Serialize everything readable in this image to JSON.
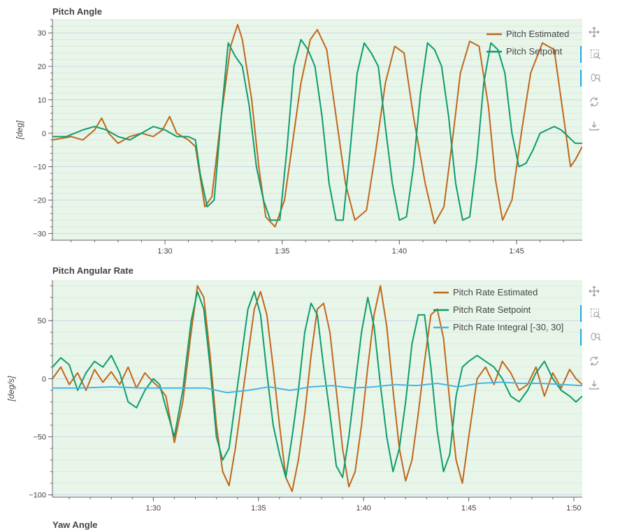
{
  "colors": {
    "estimated": "#c0671a",
    "setpoint": "#0e9c6d",
    "integral": "#4ab3e0",
    "plot_bg": "#e8f6ea",
    "grid": "#cdd7e6",
    "minor_grid": "#dde8dd",
    "toolbar_accent": "#26aae1"
  },
  "toolbar": {
    "icons": [
      "pan-icon",
      "box-zoom-icon",
      "wheel-zoom-icon",
      "reset-icon",
      "save-icon"
    ]
  },
  "next_title": "Yaw Angle",
  "chart_data": [
    {
      "type": "line",
      "title": "Pitch Angle",
      "ylabel": "[deg]",
      "xlim": [
        85.2,
        107.8
      ],
      "ylim": [
        -32,
        34
      ],
      "x_ticks": [
        {
          "v": 90,
          "label": "1:30"
        },
        {
          "v": 95,
          "label": "1:35"
        },
        {
          "v": 100,
          "label": "1:40"
        },
        {
          "v": 105,
          "label": "1:45"
        }
      ],
      "y_ticks": [
        30,
        20,
        10,
        0,
        -10,
        -20,
        -30
      ],
      "grid": true,
      "legend_position": "top-right",
      "series": [
        {
          "name": "Pitch Estimated",
          "color_key": "estimated",
          "x": [
            85.2,
            86.0,
            86.5,
            87.0,
            87.3,
            87.6,
            88.0,
            88.5,
            89.0,
            89.5,
            89.9,
            90.2,
            90.5,
            91.0,
            91.3,
            91.7,
            92.0,
            92.4,
            92.8,
            93.1,
            93.3,
            93.7,
            94.0,
            94.3,
            94.7,
            95.1,
            95.4,
            95.8,
            96.2,
            96.5,
            96.9,
            97.3,
            97.7,
            98.1,
            98.6,
            99.0,
            99.4,
            99.8,
            100.2,
            100.6,
            101.1,
            101.5,
            101.9,
            102.3,
            102.6,
            103.0,
            103.4,
            103.8,
            104.1,
            104.4,
            104.8,
            105.2,
            105.6,
            106.1,
            106.6,
            107.0,
            107.3,
            107.5,
            107.8
          ],
          "y": [
            -2,
            -1,
            -2,
            1,
            4.5,
            0,
            -3,
            -1,
            0,
            -1,
            1,
            5,
            0,
            -2,
            -4,
            -22,
            -19,
            5,
            26,
            32.5,
            28,
            10,
            -10,
            -25,
            -28,
            -20,
            -5,
            15,
            28,
            31,
            25,
            5,
            -15,
            -26,
            -23,
            -5,
            15,
            26,
            24,
            5,
            -15,
            -27,
            -22,
            0,
            18,
            27.5,
            26,
            8,
            -14,
            -26,
            -20,
            0,
            18,
            27,
            25,
            5,
            -10,
            -8,
            -4
          ]
        },
        {
          "name": "Pitch Setpoint",
          "color_key": "setpoint",
          "x": [
            85.2,
            85.8,
            86.5,
            87.0,
            87.5,
            88.0,
            88.5,
            89.0,
            89.5,
            90.0,
            90.5,
            91.0,
            91.3,
            91.5,
            91.8,
            92.1,
            92.4,
            92.7,
            93.0,
            93.3,
            93.6,
            93.9,
            94.2,
            94.5,
            94.9,
            95.2,
            95.5,
            95.8,
            96.1,
            96.4,
            96.7,
            97.0,
            97.3,
            97.6,
            97.9,
            98.2,
            98.5,
            98.8,
            99.1,
            99.4,
            99.7,
            100.0,
            100.3,
            100.6,
            100.9,
            101.2,
            101.5,
            101.8,
            102.1,
            102.4,
            102.7,
            103.0,
            103.3,
            103.6,
            103.9,
            104.2,
            104.5,
            104.8,
            105.1,
            105.4,
            105.7,
            106.0,
            106.3,
            106.6,
            106.9,
            107.2,
            107.5,
            107.8
          ],
          "y": [
            -1,
            -1,
            1,
            2,
            1,
            -1,
            -2,
            0,
            2,
            1,
            -1,
            -1,
            -2,
            -12,
            -22,
            -20,
            5,
            27,
            23,
            20,
            8,
            -10,
            -20,
            -26,
            -26,
            -5,
            20,
            28,
            25,
            20,
            5,
            -15,
            -26,
            -26,
            -5,
            18,
            27,
            24,
            20,
            2,
            -15,
            -26,
            -25,
            -10,
            12,
            27,
            25,
            20,
            5,
            -15,
            -26,
            -25,
            -8,
            15,
            27,
            25,
            18,
            0,
            -10,
            -9,
            -5,
            0,
            1,
            2,
            1,
            -1,
            -3,
            -3
          ]
        }
      ]
    },
    {
      "type": "line",
      "title": "Pitch Angular Rate",
      "ylabel": "[deg/s]",
      "xlim": [
        85.2,
        110.4
      ],
      "ylim": [
        -102,
        85
      ],
      "x_ticks": [
        {
          "v": 90,
          "label": "1:30"
        },
        {
          "v": 95,
          "label": "1:35"
        },
        {
          "v": 100,
          "label": "1:40"
        },
        {
          "v": 105,
          "label": "1:45"
        },
        {
          "v": 110,
          "label": "1:50"
        }
      ],
      "y_ticks": [
        50,
        0,
        -50,
        -100
      ],
      "grid": true,
      "legend_position": "top-right",
      "series": [
        {
          "name": "Pitch Rate Estimated",
          "color_key": "estimated",
          "x": [
            85.2,
            85.6,
            86.0,
            86.4,
            86.8,
            87.2,
            87.6,
            88.0,
            88.4,
            88.8,
            89.2,
            89.6,
            90.0,
            90.3,
            90.6,
            91.0,
            91.4,
            91.8,
            92.1,
            92.4,
            92.7,
            93.0,
            93.3,
            93.6,
            93.9,
            94.2,
            94.5,
            94.8,
            95.1,
            95.4,
            95.7,
            96.0,
            96.3,
            96.6,
            96.9,
            97.2,
            97.5,
            97.8,
            98.1,
            98.4,
            98.7,
            99.0,
            99.3,
            99.6,
            99.9,
            100.2,
            100.5,
            100.8,
            101.1,
            101.4,
            101.7,
            102.0,
            102.3,
            102.6,
            102.9,
            103.2,
            103.5,
            103.8,
            104.1,
            104.4,
            104.7,
            105.0,
            105.4,
            105.8,
            106.2,
            106.6,
            107.0,
            107.4,
            107.8,
            108.2,
            108.6,
            109.0,
            109.4,
            109.8,
            110.1,
            110.4
          ],
          "y": [
            0,
            10,
            -5,
            5,
            -10,
            8,
            -3,
            6,
            -5,
            10,
            -8,
            5,
            -3,
            -8,
            -15,
            -55,
            -20,
            40,
            80,
            70,
            20,
            -40,
            -80,
            -92,
            -60,
            -20,
            20,
            60,
            75,
            55,
            10,
            -40,
            -85,
            -97,
            -70,
            -30,
            20,
            60,
            65,
            40,
            -10,
            -60,
            -93,
            -80,
            -40,
            10,
            55,
            80,
            45,
            -10,
            -60,
            -88,
            -70,
            -30,
            15,
            55,
            60,
            35,
            -20,
            -70,
            -90,
            -50,
            0,
            10,
            -5,
            15,
            5,
            -10,
            -5,
            10,
            -15,
            5,
            -8,
            8,
            0,
            -5
          ]
        },
        {
          "name": "Pitch Rate Setpoint",
          "color_key": "setpoint",
          "x": [
            85.2,
            85.6,
            86.0,
            86.4,
            86.8,
            87.2,
            87.6,
            88.0,
            88.4,
            88.8,
            89.2,
            89.6,
            90.0,
            90.3,
            90.6,
            91.0,
            91.4,
            91.8,
            92.1,
            92.4,
            92.7,
            93.0,
            93.3,
            93.6,
            93.9,
            94.2,
            94.5,
            94.8,
            95.1,
            95.4,
            95.7,
            96.0,
            96.3,
            96.6,
            96.9,
            97.2,
            97.5,
            97.8,
            98.1,
            98.4,
            98.7,
            99.0,
            99.3,
            99.6,
            99.9,
            100.2,
            100.5,
            100.8,
            101.1,
            101.4,
            101.7,
            102.0,
            102.3,
            102.6,
            102.9,
            103.2,
            103.5,
            103.8,
            104.1,
            104.4,
            104.7,
            105.0,
            105.4,
            105.8,
            106.2,
            106.6,
            107.0,
            107.4,
            107.8,
            108.2,
            108.6,
            109.0,
            109.4,
            109.8,
            110.1,
            110.4
          ],
          "y": [
            10,
            18,
            12,
            -10,
            5,
            15,
            10,
            20,
            5,
            -20,
            -25,
            -10,
            0,
            -5,
            -25,
            -50,
            -10,
            50,
            75,
            60,
            10,
            -50,
            -70,
            -60,
            -20,
            20,
            60,
            75,
            55,
            5,
            -40,
            -65,
            -85,
            -50,
            -10,
            40,
            65,
            55,
            10,
            -30,
            -75,
            -85,
            -50,
            -5,
            40,
            70,
            45,
            -5,
            -50,
            -80,
            -60,
            -20,
            30,
            55,
            55,
            10,
            -45,
            -80,
            -65,
            -15,
            10,
            15,
            20,
            15,
            10,
            0,
            -15,
            -20,
            -10,
            5,
            15,
            0,
            -10,
            -15,
            -20,
            -15
          ]
        },
        {
          "name": "Pitch Rate Integral [-30, 30]",
          "color_key": "integral",
          "x": [
            85.2,
            86.5,
            88.0,
            89.5,
            91.0,
            92.5,
            93.5,
            94.5,
            95.5,
            96.5,
            97.5,
            98.5,
            99.5,
            100.5,
            101.5,
            102.5,
            103.5,
            104.5,
            105.5,
            106.5,
            107.5,
            108.5,
            109.5,
            110.4
          ],
          "y": [
            -8,
            -8,
            -7,
            -8,
            -8,
            -8,
            -12,
            -10,
            -7,
            -10,
            -7,
            -6,
            -8,
            -7,
            -5,
            -6,
            -4,
            -7,
            -4,
            -3,
            -4,
            -4,
            -5,
            -6
          ]
        }
      ]
    }
  ]
}
